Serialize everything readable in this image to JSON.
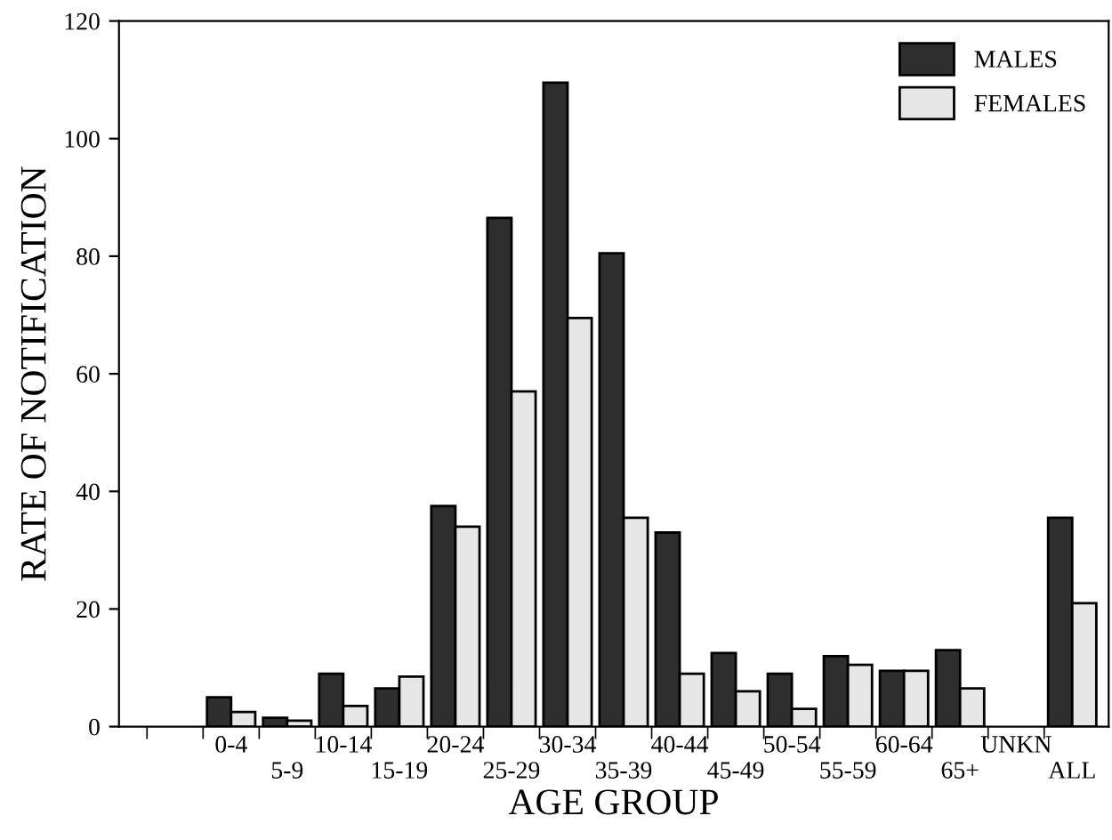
{
  "chart_data": {
    "type": "bar",
    "xlabel": "AGE GROUP",
    "ylabel": "RATE OF NOTIFICATION",
    "categories": [
      "0-4",
      "5-9",
      "10-14",
      "15-19",
      "20-24",
      "25-29",
      "30-34",
      "35-39",
      "40-44",
      "45-49",
      "50-54",
      "55-59",
      "60-64",
      "65+",
      "UNKN",
      "ALL"
    ],
    "series": [
      {
        "name": "MALES",
        "color": "#2e2e2e",
        "values": [
          5,
          1.5,
          9,
          6.5,
          37.5,
          86.5,
          109.5,
          80.5,
          33,
          12.5,
          9,
          12,
          9.5,
          13,
          null,
          35.5
        ]
      },
      {
        "name": "FEMALES",
        "color": "#e6e6e6",
        "values": [
          2.5,
          1,
          3.5,
          8.5,
          34,
          57,
          69.5,
          35.5,
          9,
          6,
          3,
          10.5,
          9.5,
          6.5,
          null,
          21
        ]
      }
    ],
    "ylim": [
      0,
      120
    ],
    "yticks": [
      0,
      20,
      40,
      60,
      80,
      100,
      120
    ],
    "grid": false,
    "legend": "top right"
  }
}
